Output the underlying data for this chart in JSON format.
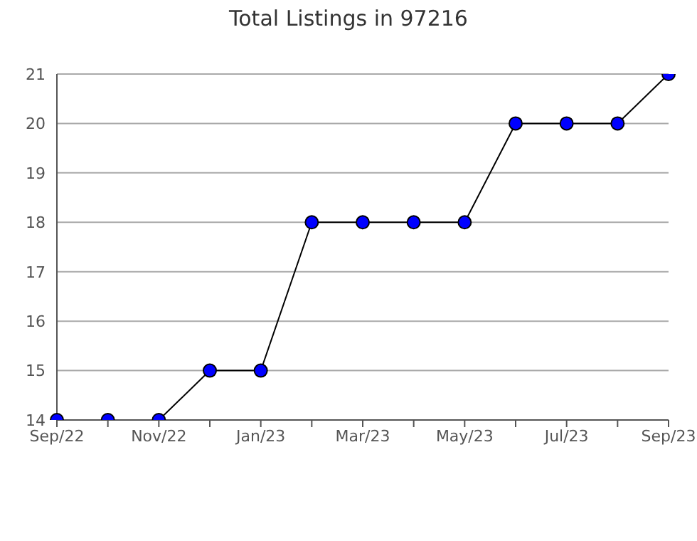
{
  "chart_data": {
    "type": "line",
    "title": "Total Listings in 97216",
    "categories": [
      "Sep/22",
      null,
      "Nov/22",
      null,
      "Jan/23",
      null,
      "Mar/23",
      null,
      "May/23",
      null,
      "Jul/23",
      null,
      "Sep/23"
    ],
    "series": [
      {
        "color": "#0000ff",
        "values": [
          14,
          14,
          14,
          15,
          15,
          18,
          18,
          18,
          18,
          20,
          20,
          20,
          21
        ]
      }
    ],
    "ylim": [
      14,
      21
    ],
    "yticks": [
      14,
      15,
      16,
      17,
      18,
      19,
      20,
      21
    ],
    "grid": "y",
    "marker": "circle",
    "line_style": "solid",
    "legend": false
  }
}
